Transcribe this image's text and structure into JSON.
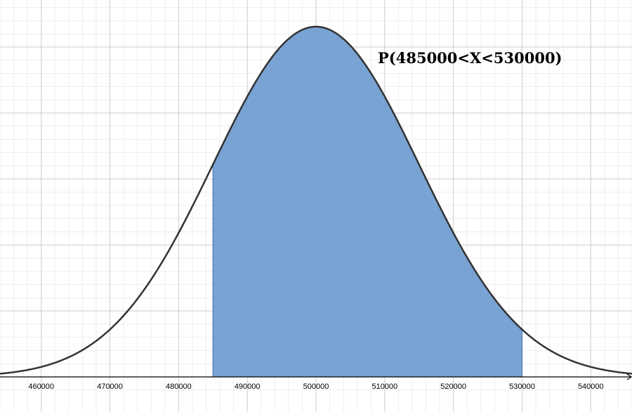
{
  "chart_data": {
    "type": "area",
    "distribution": "normal",
    "mean": 500000,
    "sd": 15000,
    "xlim": [
      454000,
      546000
    ],
    "shaded_interval": [
      485000,
      530000
    ],
    "x_ticks": [
      "460000",
      "470000",
      "480000",
      "490000",
      "500000",
      "510000",
      "520000",
      "530000",
      "540000"
    ],
    "annotation": "P(485000<X<530000)",
    "grid": true,
    "colors": {
      "curve": "#333333",
      "shade": "#6c9bcf",
      "shade_edge": "#4a7ab0",
      "grid_major": "#cccccc",
      "grid_minor": "#eeeeee",
      "axis": "#000000"
    }
  }
}
